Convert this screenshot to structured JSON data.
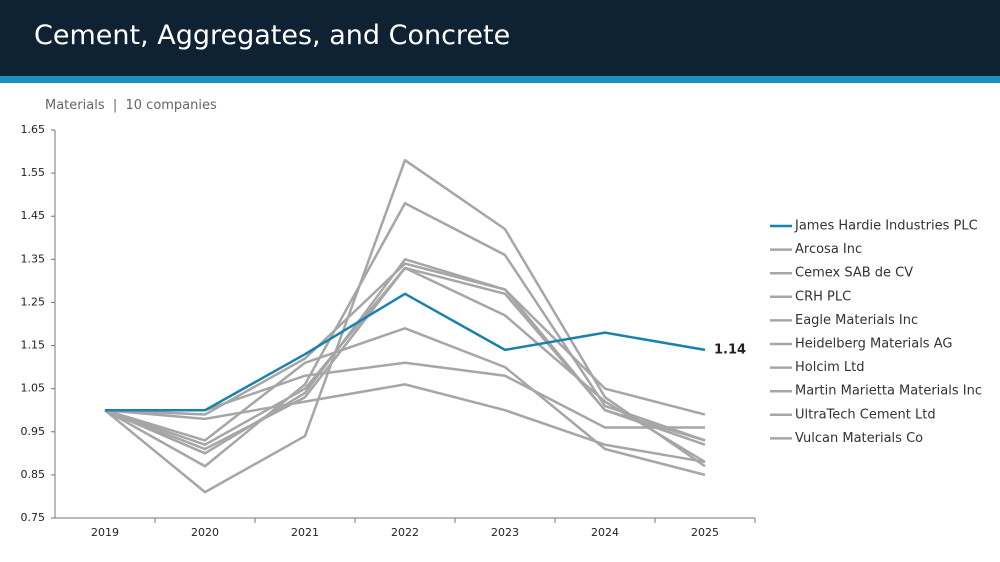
{
  "chart_data": {
    "type": "line",
    "title": "Cement, Aggregates, and Concrete",
    "subtitle": "Materials  |  10 companies",
    "categories": [
      "2019",
      "2020",
      "2021",
      "2022",
      "2023",
      "2024",
      "2025"
    ],
    "ylim": [
      0.75,
      1.65
    ],
    "yticks": [
      0.75,
      0.85,
      0.95,
      1.05,
      1.15,
      1.25,
      1.35,
      1.45,
      1.55,
      1.65
    ],
    "series": [
      {
        "name": "James Hardie Industries PLC",
        "color": "#1a82ad",
        "values": [
          1.0,
          1.0,
          1.13,
          1.27,
          1.14,
          1.18,
          1.14
        ]
      },
      {
        "name": "Arcosa Inc",
        "color": "#a6a6a6",
        "values": [
          1.0,
          0.81,
          0.94,
          1.58,
          1.42,
          1.03,
          0.87
        ]
      },
      {
        "name": "Cemex SAB de CV",
        "color": "#a6a6a6",
        "values": [
          1.0,
          0.87,
          1.06,
          1.48,
          1.36,
          1.01,
          0.93
        ]
      },
      {
        "name": "CRH PLC",
        "color": "#a6a6a6",
        "values": [
          1.0,
          0.9,
          1.04,
          1.35,
          1.28,
          1.05,
          0.99
        ]
      },
      {
        "name": "Eagle Materials Inc",
        "color": "#a6a6a6",
        "values": [
          1.0,
          0.92,
          1.05,
          1.33,
          1.27,
          1.0,
          0.93
        ]
      },
      {
        "name": "Heidelberg Materials AG",
        "color": "#a6a6a6",
        "values": [
          1.0,
          0.91,
          1.03,
          1.33,
          1.22,
          1.02,
          0.88
        ]
      },
      {
        "name": "Holcim Ltd",
        "color": "#a6a6a6",
        "values": [
          1.0,
          0.93,
          1.11,
          1.19,
          1.1,
          0.91,
          0.85
        ]
      },
      {
        "name": "Martin Marietta Materials Inc",
        "color": "#a6a6a6",
        "values": [
          1.0,
          1.0,
          1.08,
          1.11,
          1.08,
          0.96,
          0.96
        ]
      },
      {
        "name": "UltraTech Cement Ltd",
        "color": "#a6a6a6",
        "values": [
          1.0,
          0.98,
          1.02,
          1.06,
          1.0,
          0.92,
          0.88
        ]
      },
      {
        "name": "Vulcan Materials Co",
        "color": "#a6a6a6",
        "values": [
          1.0,
          0.99,
          1.12,
          1.34,
          1.28,
          1.0,
          0.92
        ]
      }
    ]
  }
}
